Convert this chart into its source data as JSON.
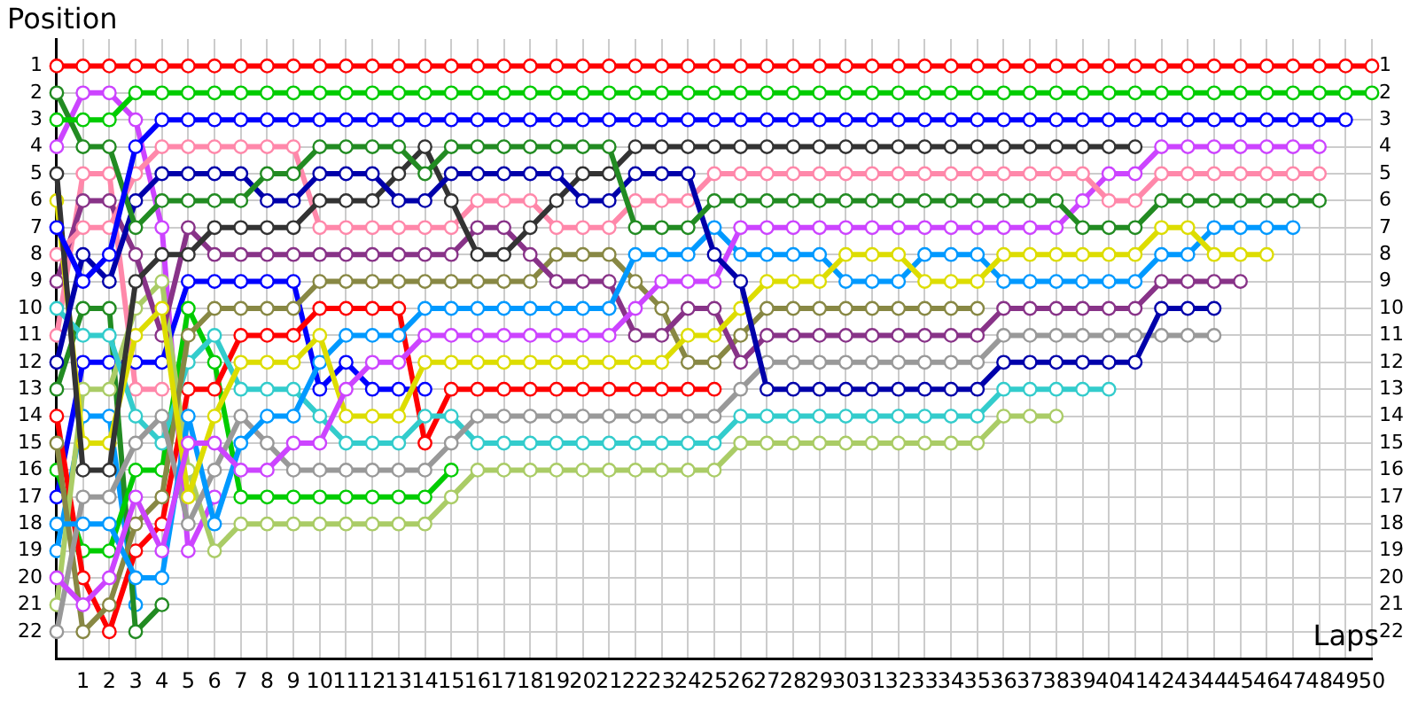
{
  "chart_data": {
    "type": "line",
    "xlabel": "Laps",
    "ylabel": "Position",
    "grid": true,
    "marker": "circle",
    "line_style": "solid",
    "x": [
      0,
      1,
      2,
      3,
      4,
      5,
      6,
      7,
      8,
      9,
      10,
      11,
      12,
      13,
      14,
      15,
      16,
      17,
      18,
      19,
      20,
      21,
      22,
      23,
      24,
      25,
      26,
      27,
      28,
      29,
      30,
      31,
      32,
      33,
      34,
      35,
      36,
      37,
      38,
      39,
      40,
      41,
      42,
      43,
      44,
      45,
      46,
      47,
      48,
      49,
      50
    ],
    "xlim": [
      0,
      50
    ],
    "xticks": [
      1,
      2,
      3,
      4,
      5,
      6,
      7,
      8,
      9,
      10,
      11,
      12,
      13,
      14,
      15,
      16,
      17,
      18,
      19,
      20,
      21,
      22,
      23,
      24,
      25,
      26,
      27,
      28,
      29,
      30,
      31,
      32,
      33,
      34,
      35,
      36,
      37,
      38,
      39,
      40,
      41,
      42,
      43,
      44,
      45,
      46,
      47,
      48,
      49,
      50
    ],
    "ylim": [
      23,
      0
    ],
    "yticks": [
      1,
      2,
      3,
      4,
      5,
      6,
      7,
      8,
      9,
      10,
      11,
      12,
      13,
      14,
      15,
      16,
      17,
      18,
      19,
      20,
      21,
      22
    ],
    "y2lim": [
      23,
      0
    ],
    "y2ticks": [
      1,
      2,
      3,
      4,
      5,
      6,
      7,
      8,
      9,
      10,
      11,
      12,
      13,
      14,
      15,
      16,
      17,
      18,
      19,
      20,
      21,
      22
    ],
    "series": [
      {
        "color": "#ff0000",
        "values": [
          1,
          1,
          1,
          1,
          1,
          1,
          1,
          1,
          1,
          1,
          1,
          1,
          1,
          1,
          1,
          1,
          1,
          1,
          1,
          1,
          1,
          1,
          1,
          1,
          1,
          1,
          1,
          1,
          1,
          1,
          1,
          1,
          1,
          1,
          1,
          1,
          1,
          1,
          1,
          1,
          1,
          1,
          1,
          1,
          1,
          1,
          1,
          1,
          1,
          1,
          1
        ]
      },
      {
        "color": "#00cc00",
        "values": [
          3,
          3,
          3,
          2,
          2,
          2,
          2,
          2,
          2,
          2,
          2,
          2,
          2,
          2,
          2,
          2,
          2,
          2,
          2,
          2,
          2,
          2,
          2,
          2,
          2,
          2,
          2,
          2,
          2,
          2,
          2,
          2,
          2,
          2,
          2,
          2,
          2,
          2,
          2,
          2,
          2,
          2,
          2,
          2,
          2,
          2,
          2,
          2,
          2,
          2,
          2
        ]
      },
      {
        "color": "#0000ff",
        "values": [
          7,
          9,
          8,
          4,
          3,
          3,
          3,
          3,
          3,
          3,
          3,
          3,
          3,
          3,
          3,
          3,
          3,
          3,
          3,
          3,
          3,
          3,
          3,
          3,
          3,
          3,
          3,
          3,
          3,
          3,
          3,
          3,
          3,
          3,
          3,
          3,
          3,
          3,
          3,
          3,
          3,
          3,
          3,
          3,
          3,
          3,
          3,
          3,
          3,
          3,
          null
        ]
      },
      {
        "color": "#228b22",
        "values": [
          2,
          4,
          4,
          7,
          6,
          6,
          6,
          6,
          5,
          5,
          4,
          4,
          4,
          4,
          5,
          4,
          4,
          4,
          4,
          4,
          4,
          4,
          7,
          7,
          7,
          6,
          6,
          6,
          6,
          6,
          6,
          6,
          6,
          6,
          6,
          6,
          6,
          6,
          6,
          7,
          7,
          7,
          6,
          6,
          6,
          6,
          6,
          6,
          6,
          null,
          null
        ]
      },
      {
        "color": "#0000aa",
        "values": [
          12,
          8,
          9,
          6,
          5,
          5,
          5,
          5,
          6,
          6,
          5,
          5,
          5,
          6,
          6,
          5,
          5,
          5,
          5,
          5,
          6,
          6,
          5,
          5,
          5,
          8,
          9,
          13,
          13,
          13,
          13,
          13,
          13,
          13,
          13,
          13,
          12,
          12,
          12,
          12,
          12,
          12,
          10,
          10,
          10,
          null,
          null,
          null,
          null,
          null,
          null
        ]
      },
      {
        "color": "#333333",
        "values": [
          5,
          16,
          16,
          9,
          8,
          8,
          7,
          7,
          7,
          7,
          6,
          6,
          6,
          5,
          4,
          6,
          8,
          8,
          7,
          6,
          5,
          5,
          4,
          4,
          4,
          4,
          4,
          4,
          4,
          4,
          4,
          4,
          4,
          4,
          4,
          4,
          4,
          4,
          4,
          4,
          4,
          4,
          null,
          null,
          null,
          null,
          null,
          null,
          null,
          null,
          null
        ]
      },
      {
        "color": "#ff88aa",
        "values": [
          8,
          7,
          7,
          5,
          4,
          4,
          4,
          4,
          4,
          4,
          7,
          7,
          7,
          7,
          7,
          7,
          6,
          6,
          6,
          7,
          7,
          7,
          6,
          6,
          6,
          5,
          5,
          5,
          5,
          5,
          5,
          5,
          5,
          5,
          5,
          5,
          5,
          5,
          5,
          5,
          6,
          6,
          5,
          5,
          5,
          5,
          5,
          5,
          5,
          null,
          null
        ]
      },
      {
        "color": "#cc44ff",
        "values": [
          20,
          21,
          20,
          17,
          19,
          15,
          15,
          16,
          16,
          15,
          15,
          13,
          12,
          12,
          11,
          11,
          11,
          11,
          11,
          11,
          11,
          11,
          10,
          9,
          9,
          9,
          7,
          7,
          7,
          7,
          7,
          7,
          7,
          7,
          7,
          7,
          7,
          7,
          7,
          6,
          5,
          5,
          4,
          4,
          4,
          4,
          4,
          4,
          4,
          null,
          null
        ]
      },
      {
        "color": "#dddd00",
        "values": [
          6,
          15,
          15,
          11,
          10,
          17,
          14,
          12,
          12,
          12,
          11,
          14,
          14,
          14,
          12,
          12,
          12,
          12,
          12,
          12,
          12,
          12,
          12,
          12,
          11,
          11,
          10,
          9,
          9,
          9,
          8,
          8,
          8,
          9,
          9,
          9,
          8,
          8,
          8,
          8,
          8,
          8,
          7,
          7,
          8,
          8,
          8,
          null,
          null,
          null,
          null
        ]
      },
      {
        "color": "#0099ff",
        "values": [
          18,
          18,
          18,
          20,
          20,
          14,
          18,
          15,
          14,
          14,
          12,
          11,
          11,
          11,
          10,
          10,
          10,
          10,
          10,
          10,
          10,
          10,
          8,
          8,
          8,
          7,
          8,
          8,
          8,
          8,
          9,
          9,
          9,
          8,
          8,
          8,
          9,
          9,
          9,
          9,
          9,
          9,
          8,
          8,
          7,
          7,
          7,
          7,
          null,
          null,
          null
        ]
      },
      {
        "color": "#883388",
        "values": [
          9,
          6,
          6,
          8,
          11,
          7,
          8,
          8,
          8,
          8,
          8,
          8,
          8,
          8,
          8,
          8,
          7,
          7,
          8,
          9,
          9,
          9,
          11,
          11,
          10,
          10,
          12,
          11,
          11,
          11,
          11,
          11,
          11,
          11,
          11,
          11,
          10,
          10,
          10,
          10,
          10,
          10,
          9,
          9,
          9,
          9,
          null,
          null,
          null,
          null,
          null
        ]
      },
      {
        "color": "#999999",
        "values": [
          22,
          17,
          17,
          15,
          14,
          18,
          16,
          14,
          15,
          16,
          16,
          16,
          16,
          16,
          16,
          15,
          14,
          14,
          14,
          14,
          14,
          14,
          14,
          14,
          14,
          14,
          13,
          12,
          12,
          12,
          12,
          12,
          12,
          12,
          12,
          12,
          11,
          11,
          11,
          11,
          11,
          11,
          11,
          11,
          11,
          null,
          null,
          null,
          null,
          null,
          null
        ]
      },
      {
        "color": "#888844",
        "values": [
          15,
          22,
          21,
          18,
          17,
          11,
          10,
          10,
          10,
          10,
          9,
          9,
          9,
          9,
          9,
          9,
          9,
          9,
          9,
          8,
          8,
          8,
          9,
          10,
          12,
          12,
          11,
          10,
          10,
          10,
          10,
          10,
          10,
          10,
          10,
          10,
          null,
          null,
          null,
          null,
          null,
          null,
          null,
          null,
          null,
          null,
          null,
          null,
          null,
          null,
          null
        ]
      },
      {
        "color": "#33cccc",
        "values": [
          10,
          11,
          11,
          14,
          15,
          12,
          11,
          13,
          13,
          13,
          14,
          15,
          15,
          15,
          14,
          14,
          15,
          15,
          15,
          15,
          15,
          15,
          15,
          15,
          15,
          15,
          14,
          14,
          14,
          14,
          14,
          14,
          14,
          14,
          14,
          14,
          13,
          13,
          13,
          13,
          13,
          null,
          null,
          null,
          null,
          null,
          null,
          null,
          null,
          null,
          null
        ]
      },
      {
        "color": "#aacc66",
        "values": [
          21,
          13,
          13,
          10,
          9,
          16,
          19,
          18,
          18,
          18,
          18,
          18,
          18,
          18,
          18,
          17,
          16,
          16,
          16,
          16,
          16,
          16,
          16,
          16,
          16,
          16,
          15,
          15,
          15,
          15,
          15,
          15,
          15,
          15,
          15,
          15,
          14,
          14,
          14,
          null,
          null,
          null,
          null,
          null,
          null,
          null,
          null,
          null,
          null,
          null,
          null
        ]
      },
      {
        "color": "#ff0000",
        "values": [
          14,
          20,
          22,
          19,
          18,
          13,
          13,
          11,
          11,
          11,
          10,
          10,
          10,
          10,
          15,
          13,
          13,
          13,
          13,
          13,
          13,
          13,
          13,
          13,
          13,
          13,
          null,
          null,
          null,
          null,
          null,
          null,
          null,
          null,
          null,
          null,
          null,
          null,
          null,
          null,
          null,
          null,
          null,
          null,
          null,
          null,
          null,
          null,
          null,
          null,
          null
        ]
      },
      {
        "color": "#00cc00",
        "values": [
          16,
          19,
          19,
          16,
          16,
          10,
          12,
          17,
          17,
          17,
          17,
          17,
          17,
          17,
          17,
          16,
          null,
          null,
          null,
          null,
          null,
          null,
          null,
          null,
          null,
          null,
          null,
          null,
          null,
          null,
          null,
          null,
          null,
          null,
          null,
          null,
          null,
          null,
          null,
          null,
          null,
          null,
          null,
          null,
          null,
          null,
          null,
          null,
          null,
          null,
          null
        ]
      },
      {
        "color": "#0000ff",
        "values": [
          17,
          12,
          12,
          12,
          12,
          9,
          9,
          9,
          9,
          9,
          13,
          12,
          13,
          13,
          13,
          null,
          null,
          null,
          null,
          null,
          null,
          null,
          null,
          null,
          null,
          null,
          null,
          null,
          null,
          null,
          null,
          null,
          null,
          null,
          null,
          null,
          null,
          null,
          null,
          null,
          null,
          null,
          null,
          null,
          null,
          null,
          null,
          null,
          null,
          null,
          null
        ]
      },
      {
        "color": "#cc44ff",
        "values": [
          4,
          2,
          2,
          3,
          7,
          19,
          17,
          null,
          null,
          null,
          null,
          null,
          null,
          null,
          null,
          null,
          null,
          null,
          null,
          null,
          null,
          null,
          null,
          null,
          null,
          null,
          null,
          null,
          null,
          null,
          null,
          null,
          null,
          null,
          null,
          null,
          null,
          null,
          null,
          null,
          null,
          null,
          null,
          null,
          null,
          null,
          null,
          null,
          null,
          null,
          null
        ]
      },
      {
        "color": "#ff88aa",
        "values": [
          11,
          5,
          5,
          13,
          13,
          null,
          null,
          null,
          null,
          null,
          null,
          null,
          null,
          null,
          null,
          null,
          null,
          null,
          null,
          null,
          null,
          null,
          null,
          null,
          null,
          null,
          null,
          null,
          null,
          null,
          null,
          null,
          null,
          null,
          null,
          null,
          null,
          null,
          null,
          null,
          null,
          null,
          null,
          null,
          null,
          null,
          null,
          null,
          null,
          null,
          null
        ]
      },
      {
        "color": "#228b22",
        "values": [
          13,
          10,
          10,
          22,
          21,
          null,
          null,
          null,
          null,
          null,
          null,
          null,
          null,
          null,
          null,
          null,
          null,
          null,
          null,
          null,
          null,
          null,
          null,
          null,
          null,
          null,
          null,
          null,
          null,
          null,
          null,
          null,
          null,
          null,
          null,
          null,
          null,
          null,
          null,
          null,
          null,
          null,
          null,
          null,
          null,
          null,
          null,
          null,
          null,
          null,
          null
        ]
      },
      {
        "color": "#0099ff",
        "values": [
          19,
          14,
          14,
          21,
          null,
          null,
          null,
          null,
          null,
          null,
          null,
          null,
          null,
          null,
          null,
          null,
          null,
          null,
          null,
          null,
          null,
          null,
          null,
          null,
          null,
          null,
          null,
          null,
          null,
          null,
          null,
          null,
          null,
          null,
          null,
          null,
          null,
          null,
          null,
          null,
          null,
          null,
          null,
          null,
          null,
          null,
          null,
          null,
          null,
          null,
          null
        ]
      }
    ]
  }
}
